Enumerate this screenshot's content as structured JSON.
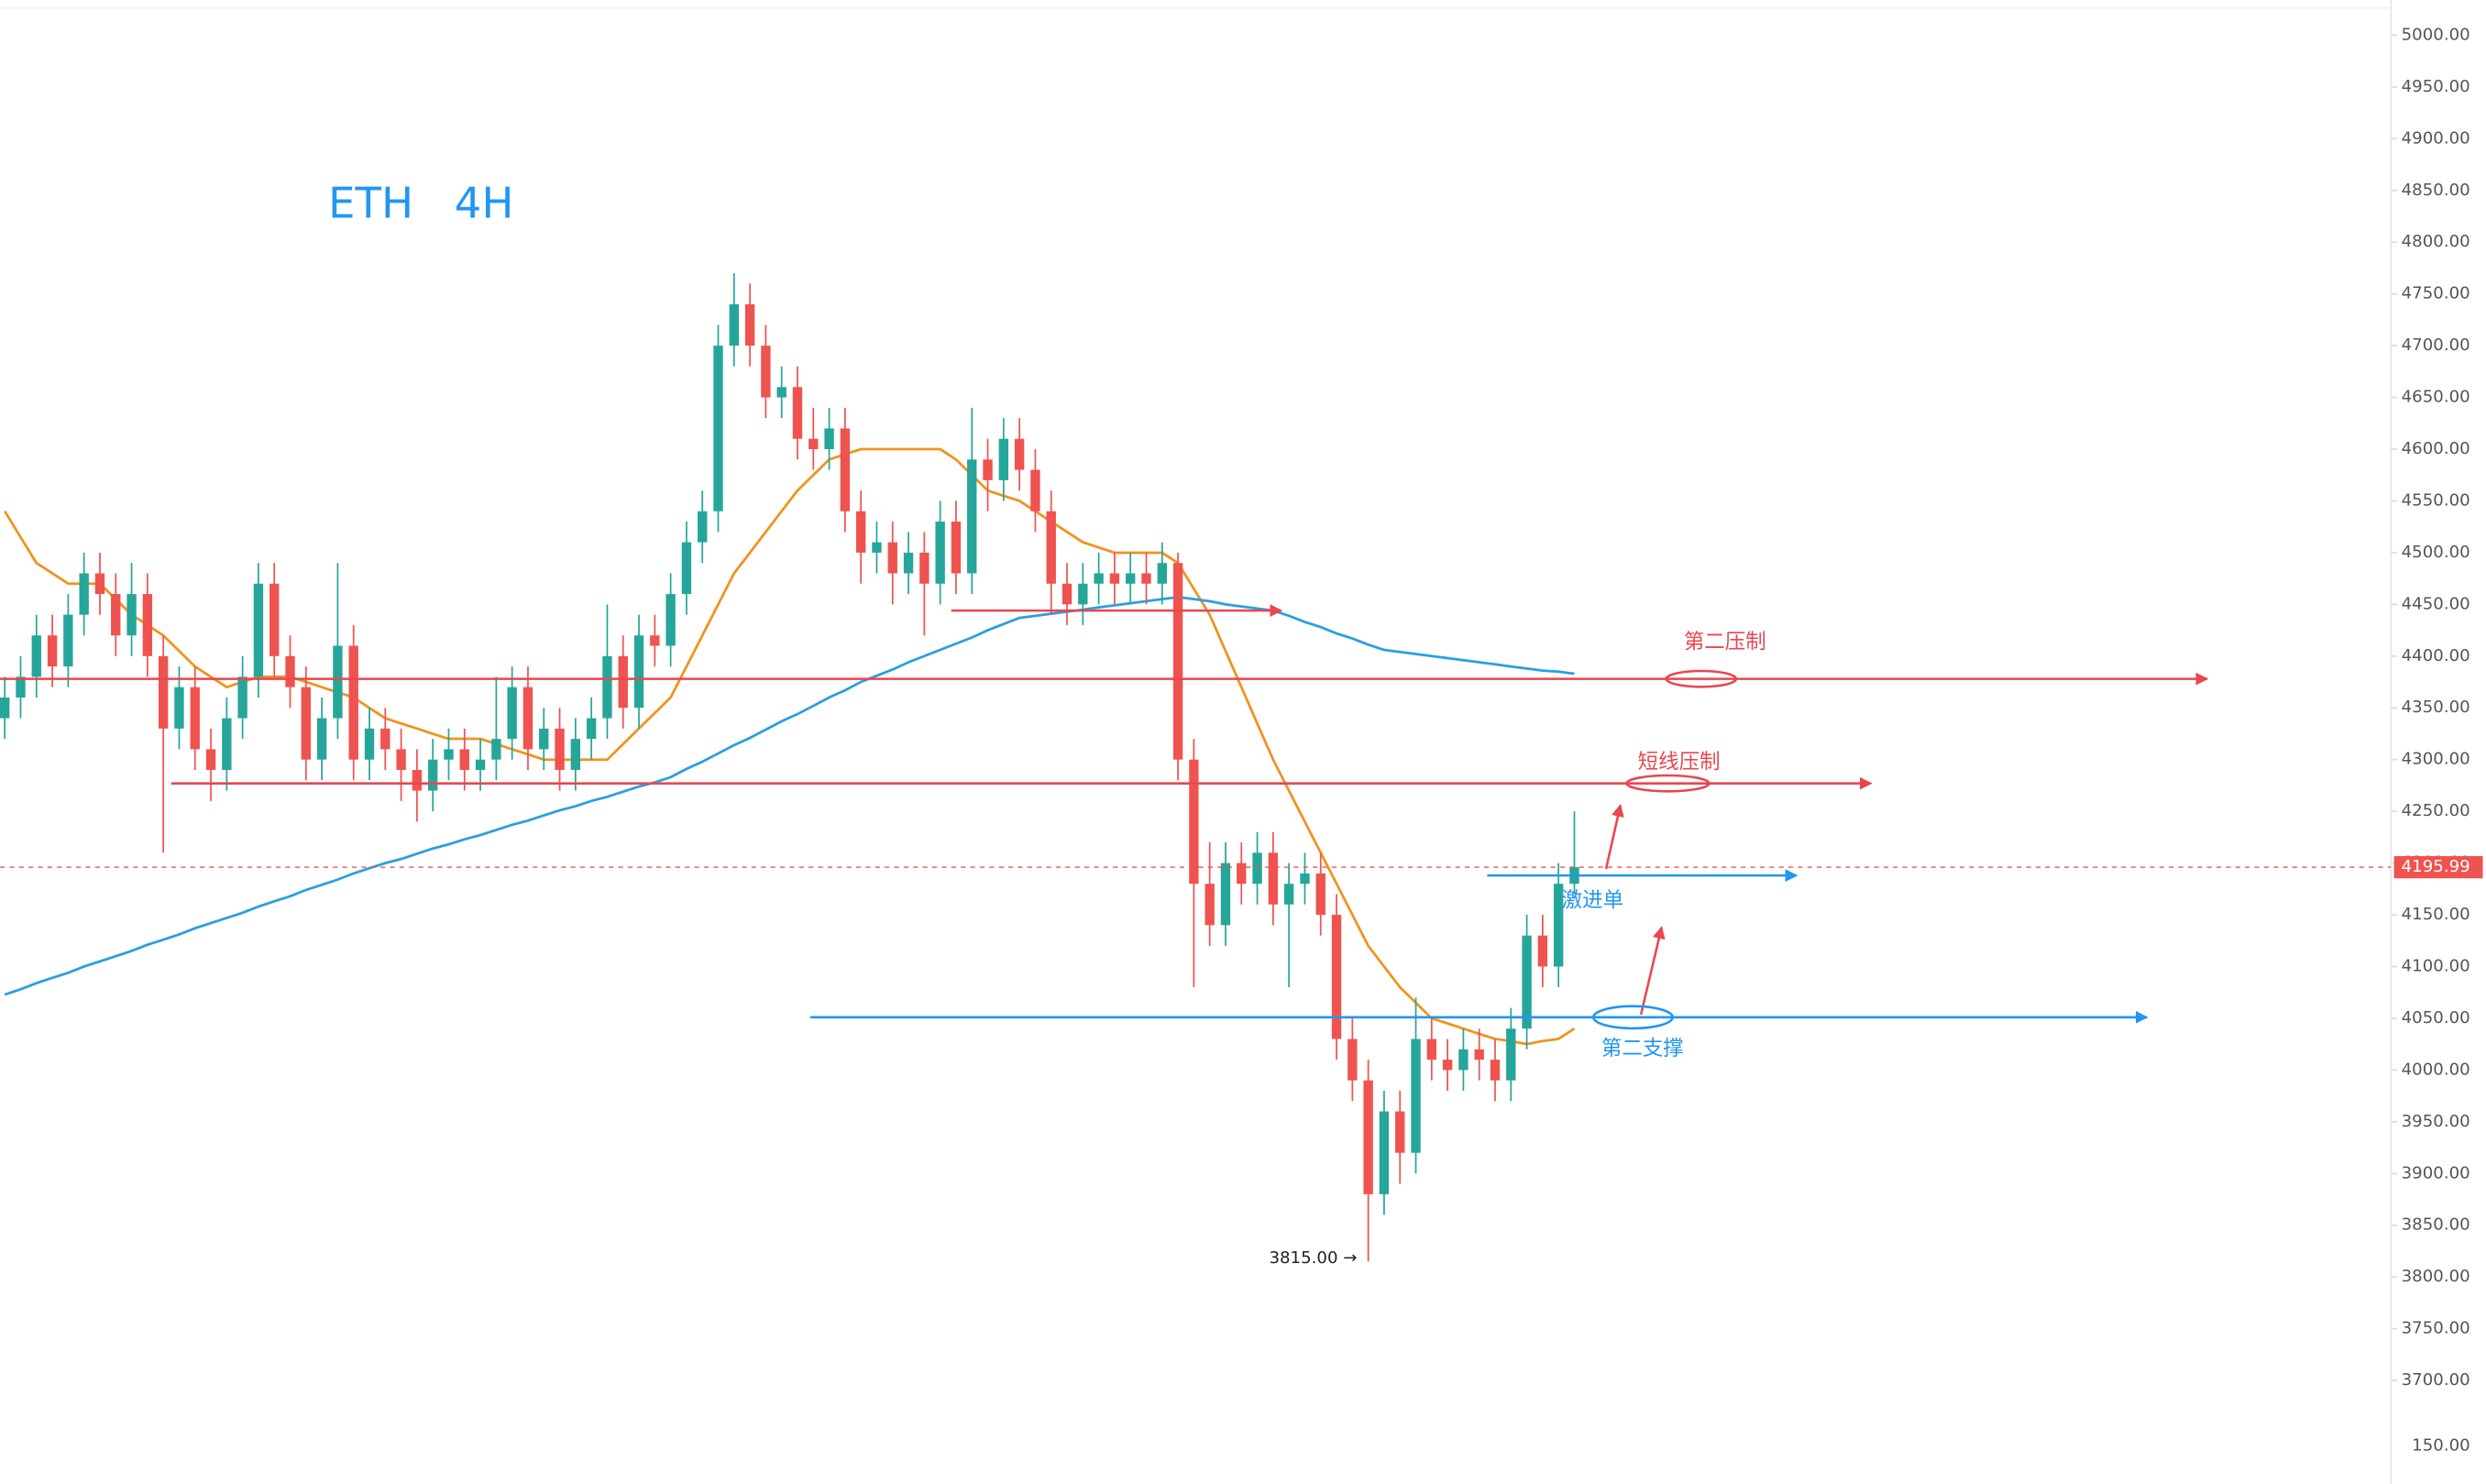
{
  "chart_data": {
    "type": "candlestick",
    "title": "ETH   4H",
    "up_color": "#26a69a",
    "down_color": "#ef5350",
    "open": [
      4340,
      4360,
      4380,
      4420,
      4390,
      4440,
      4480,
      4460,
      4420,
      4460,
      4400,
      4330,
      4370,
      4310,
      4290,
      4340,
      4380,
      4470,
      4400,
      4370,
      4300,
      4340,
      4410,
      4300,
      4330,
      4310,
      4290,
      4270,
      4300,
      4310,
      4290,
      4300,
      4320,
      4370,
      4310,
      4330,
      4290,
      4320,
      4340,
      4400,
      4350,
      4420,
      4410,
      4460,
      4510,
      4540,
      4700,
      4740,
      4700,
      4650,
      4660,
      4610,
      4600,
      4620,
      4540,
      4500,
      4510,
      4480,
      4500,
      4470,
      4530,
      4480,
      4590,
      4570,
      4610,
      4580,
      4540,
      4470,
      4450,
      4470,
      4480,
      4470,
      4480,
      4470,
      4490,
      4300,
      4180,
      4140,
      4200,
      4180,
      4210,
      4160,
      4180,
      4190,
      4150,
      4030,
      3990,
      3880,
      3960,
      3920,
      4030,
      4010,
      4000,
      4020,
      4010,
      3990,
      4040,
      4130,
      4100,
      4180
    ],
    "high": [
      4380,
      4400,
      4440,
      4440,
      4460,
      4500,
      4500,
      4480,
      4490,
      4480,
      4420,
      4390,
      4390,
      4330,
      4360,
      4400,
      4490,
      4490,
      4420,
      4390,
      4360,
      4490,
      4430,
      4350,
      4350,
      4330,
      4310,
      4320,
      4330,
      4330,
      4320,
      4380,
      4390,
      4390,
      4350,
      4350,
      4340,
      4360,
      4450,
      4420,
      4440,
      4440,
      4480,
      4530,
      4560,
      4720,
      4770,
      4760,
      4720,
      4680,
      4680,
      4640,
      4640,
      4640,
      4560,
      4530,
      4530,
      4520,
      4520,
      4550,
      4550,
      4640,
      4610,
      4630,
      4630,
      4600,
      4560,
      4490,
      4490,
      4500,
      4500,
      4500,
      4500,
      4510,
      4500,
      4320,
      4220,
      4220,
      4220,
      4230,
      4230,
      4200,
      4210,
      4210,
      4170,
      4050,
      4010,
      3980,
      3980,
      4070,
      4050,
      4030,
      4040,
      4040,
      4030,
      4060,
      4150,
      4150,
      4200,
      4250
    ],
    "low": [
      4320,
      4340,
      4360,
      4370,
      4370,
      4420,
      4440,
      4400,
      4400,
      4380,
      4210,
      4310,
      4290,
      4260,
      4270,
      4320,
      4360,
      4380,
      4350,
      4280,
      4280,
      4320,
      4280,
      4280,
      4290,
      4260,
      4240,
      4250,
      4280,
      4270,
      4270,
      4280,
      4300,
      4290,
      4290,
      4270,
      4270,
      4300,
      4320,
      4330,
      4330,
      4390,
      4390,
      4440,
      4490,
      4520,
      4680,
      4680,
      4630,
      4630,
      4590,
      4580,
      4580,
      4520,
      4470,
      4480,
      4450,
      4460,
      4420,
      4450,
      4460,
      4460,
      4540,
      4550,
      4560,
      4520,
      4440,
      4430,
      4430,
      4450,
      4450,
      4450,
      4450,
      4450,
      4280,
      4080,
      4120,
      4120,
      4160,
      4160,
      4140,
      4080,
      4160,
      4130,
      4010,
      3970,
      3815,
      3860,
      3890,
      3900,
      3990,
      3980,
      3980,
      3990,
      3970,
      3970,
      4020,
      4080,
      4080,
      4170
    ],
    "close": [
      4360,
      4380,
      4420,
      4390,
      4440,
      4480,
      4460,
      4420,
      4460,
      4400,
      4330,
      4370,
      4310,
      4290,
      4340,
      4380,
      4470,
      4400,
      4370,
      4300,
      4340,
      4410,
      4300,
      4330,
      4310,
      4290,
      4270,
      4300,
      4310,
      4290,
      4300,
      4320,
      4370,
      4310,
      4330,
      4290,
      4320,
      4340,
      4400,
      4350,
      4420,
      4410,
      4460,
      4510,
      4540,
      4700,
      4740,
      4700,
      4650,
      4660,
      4610,
      4600,
      4620,
      4540,
      4500,
      4510,
      4480,
      4500,
      4470,
      4530,
      4480,
      4590,
      4570,
      4610,
      4580,
      4540,
      4470,
      4450,
      4470,
      4480,
      4470,
      4480,
      4470,
      4490,
      4300,
      4180,
      4140,
      4200,
      4180,
      4210,
      4160,
      4180,
      4190,
      4150,
      4030,
      3990,
      3880,
      3960,
      3920,
      4030,
      4010,
      4000,
      4020,
      4010,
      3990,
      4040,
      4130,
      4100,
      4180,
      4196
    ],
    "moving_averages": [
      {
        "color": "#f0931e",
        "values": [
          4540,
          4515,
          4490,
          4480,
          4470,
          4470,
          4470,
          4455,
          4440,
          4430,
          4420,
          4405,
          4390,
          4380,
          4370,
          4375,
          4380,
          4380,
          4380,
          4375,
          4370,
          4365,
          4360,
          4350,
          4340,
          4335,
          4330,
          4325,
          4320,
          4320,
          4320,
          4315,
          4310,
          4305,
          4300,
          4300,
          4300,
          4300,
          4300,
          4315,
          4330,
          4345,
          4360,
          4390,
          4420,
          4450,
          4480,
          4500,
          4520,
          4540,
          4560,
          4575,
          4590,
          4595,
          4600,
          4600,
          4600,
          4600,
          4600,
          4600,
          4590,
          4575,
          4560,
          4555,
          4550,
          4540,
          4530,
          4520,
          4510,
          4505,
          4500,
          4500,
          4500,
          4500,
          4490,
          4465,
          4440,
          4405,
          4370,
          4335,
          4300,
          4270,
          4240,
          4210,
          4180,
          4150,
          4120,
          4100,
          4080,
          4065,
          4050,
          4045,
          4040,
          4035,
          4030,
          4028,
          4025,
          4028,
          4030,
          4040
        ]
      },
      {
        "color": "#2a9fe0",
        "values": [
          4073,
          4078,
          4084,
          4089,
          4094,
          4100,
          4105,
          4110,
          4115,
          4121,
          4126,
          4131,
          4137,
          4142,
          4147,
          4152,
          4158,
          4163,
          4168,
          4174,
          4179,
          4184,
          4190,
          4195,
          4200,
          4204,
          4209,
          4214,
          4218,
          4223,
          4227,
          4232,
          4237,
          4241,
          4246,
          4251,
          4255,
          4260,
          4264,
          4269,
          4274,
          4278,
          4283,
          4291,
          4298,
          4306,
          4314,
          4321,
          4329,
          4337,
          4344,
          4352,
          4360,
          4367,
          4375,
          4381,
          4387,
          4394,
          4400,
          4406,
          4412,
          4418,
          4425,
          4431,
          4437,
          4439,
          4441,
          4443,
          4445,
          4447,
          4449,
          4451,
          4453,
          4455,
          4457,
          4455,
          4453,
          4450,
          4448,
          4446,
          4444,
          4439,
          4433,
          4428,
          4422,
          4417,
          4411,
          4406,
          4404,
          4402,
          4400,
          4398,
          4396,
          4394,
          4392,
          4390,
          4388,
          4386,
          4385,
          4383
        ]
      }
    ],
    "annotations": [
      {
        "value": 4444,
        "color": "#e8474f"
      },
      {
        "label": "第二压制",
        "value": 4378,
        "color": "#e8474f"
      },
      {
        "label": "短线压制",
        "value": 4277,
        "color": "#e8474f"
      },
      {
        "label": "激进单",
        "value": 4188,
        "color": "#2196f3"
      },
      {
        "label": "第二支撑",
        "value": 4051,
        "color": "#2196f3"
      }
    ],
    "last_price": {
      "value": 4195.99,
      "label": "4195.99"
    },
    "low_marker": {
      "value": 3815,
      "label": "3815.00 →"
    },
    "lower_pane_label": "150.00",
    "ylim": [
      3600,
      5034
    ],
    "yticks": [
      {
        "value": 5000,
        "label": "5000.00"
      },
      {
        "value": 4950,
        "label": "4950.00"
      },
      {
        "value": 4900,
        "label": "4900.00"
      },
      {
        "value": 4850,
        "label": "4850.00"
      },
      {
        "value": 4800,
        "label": "4800.00"
      },
      {
        "value": 4750,
        "label": "4750.00"
      },
      {
        "value": 4700,
        "label": "4700.00"
      },
      {
        "value": 4650,
        "label": "4650.00"
      },
      {
        "value": 4600,
        "label": "4600.00"
      },
      {
        "value": 4550,
        "label": "4550.00"
      },
      {
        "value": 4500,
        "label": "4500.00"
      },
      {
        "value": 4450,
        "label": "4450.00"
      },
      {
        "value": 4400,
        "label": "4400.00"
      },
      {
        "value": 4350,
        "label": "4350.00"
      },
      {
        "value": 4300,
        "label": "4300.00"
      },
      {
        "value": 4250,
        "label": "4250.00"
      },
      {
        "value": 4200,
        "label": "4200.00"
      },
      {
        "value": 4150,
        "label": "4150.00"
      },
      {
        "value": 4100,
        "label": "4100.00"
      },
      {
        "value": 4050,
        "label": "4050.00"
      },
      {
        "value": 4000,
        "label": "4000.00"
      },
      {
        "value": 3950,
        "label": "3950.00"
      },
      {
        "value": 3900,
        "label": "3900.00"
      },
      {
        "value": 3850,
        "label": "3850.00"
      },
      {
        "value": 3800,
        "label": "3800.00"
      },
      {
        "value": 3750,
        "label": "3750.00"
      },
      {
        "value": 3700,
        "label": "3700.00"
      }
    ]
  }
}
